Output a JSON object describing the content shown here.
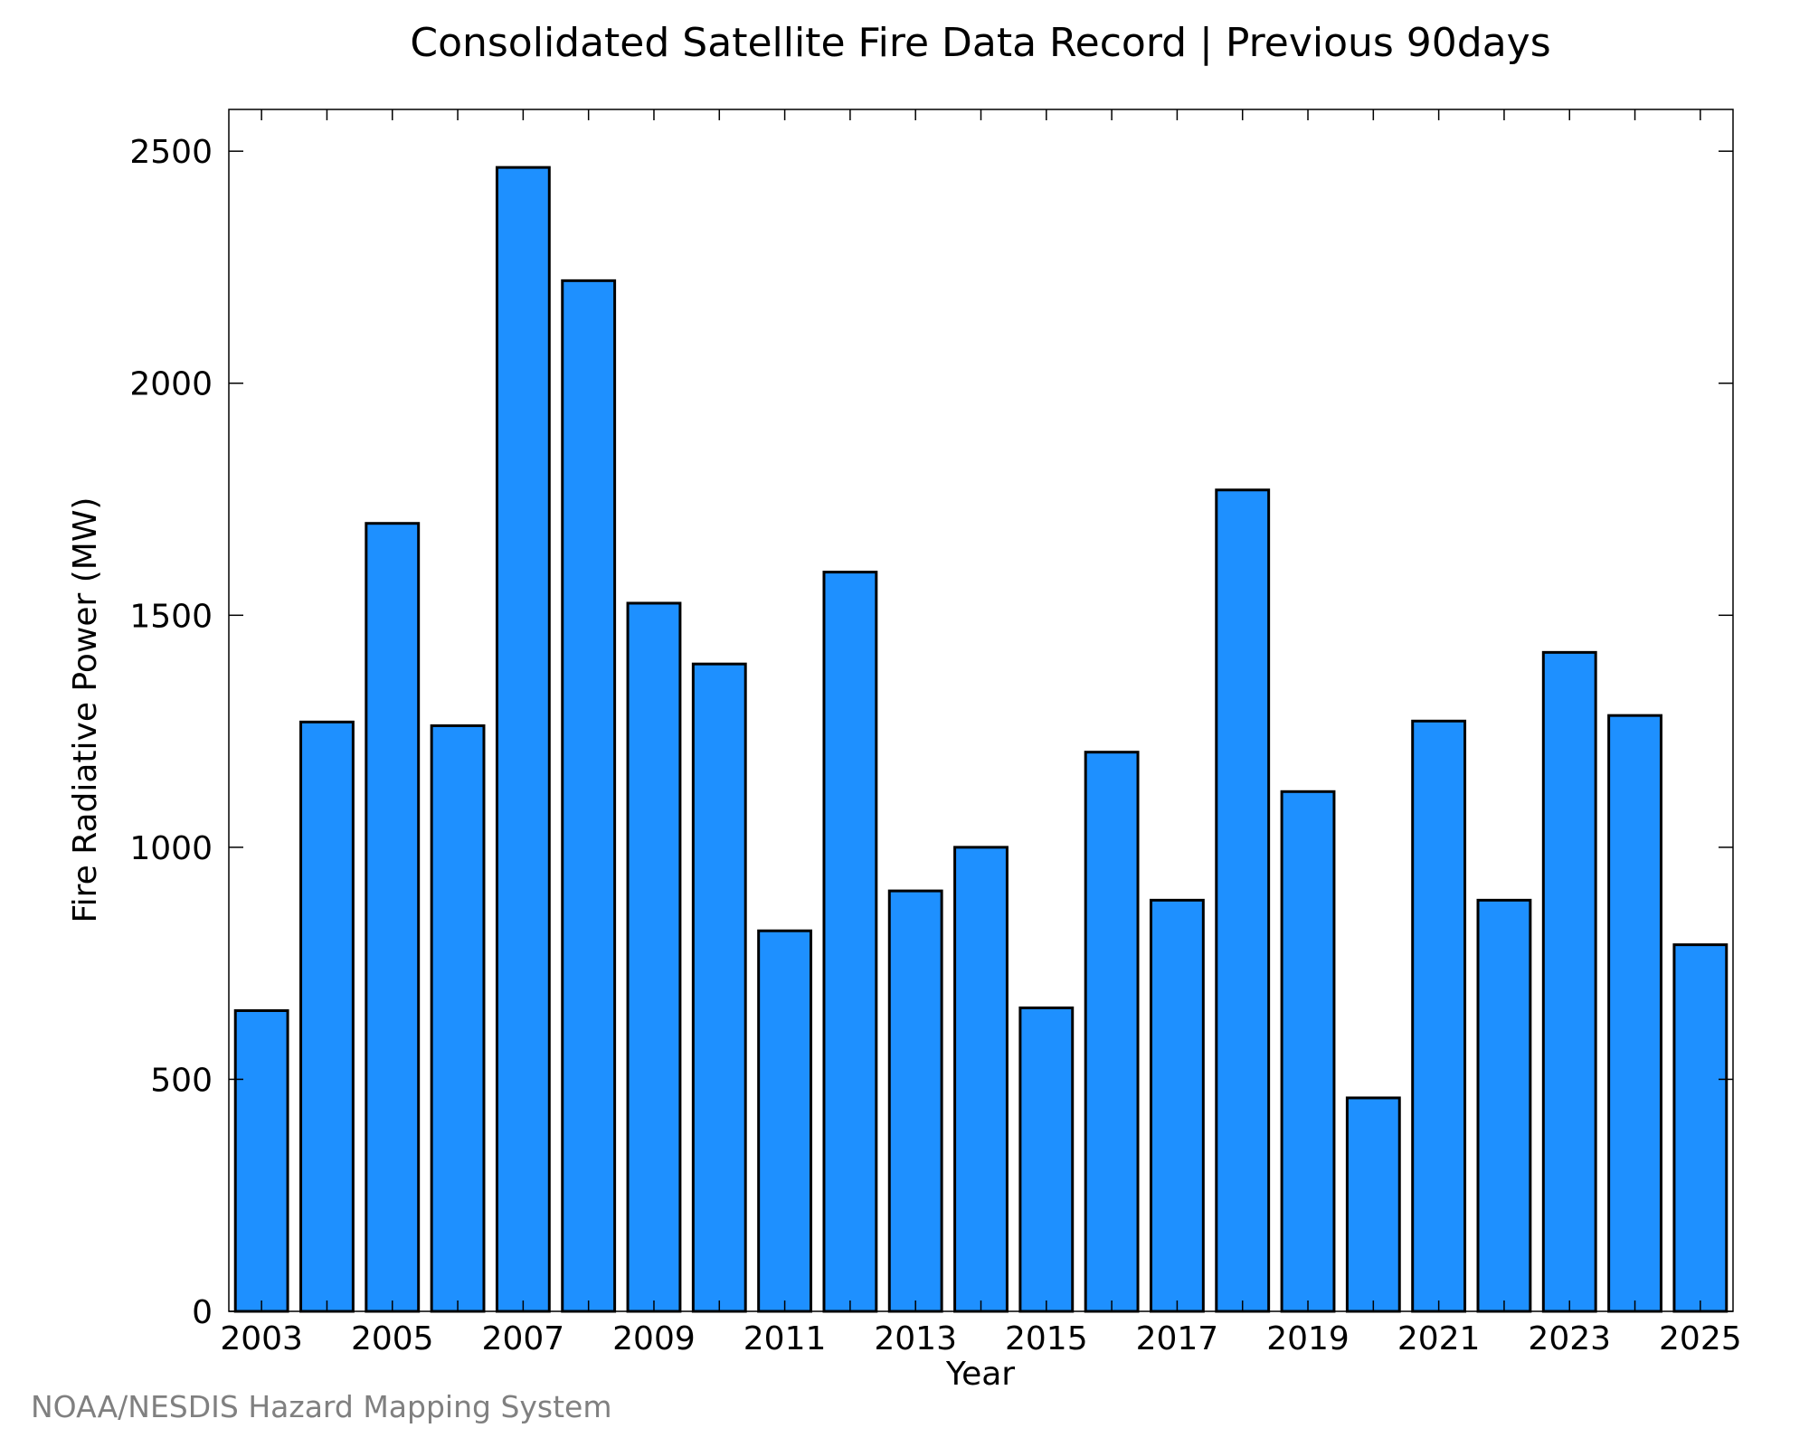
{
  "chart_data": {
    "type": "bar",
    "title": "Consolidated Satellite Fire Data Record | Previous 90days",
    "xlabel": "Year",
    "ylabel": "Fire Radiative Power (MW)",
    "categories": [
      2003,
      2004,
      2005,
      2006,
      2007,
      2008,
      2009,
      2010,
      2011,
      2012,
      2013,
      2014,
      2015,
      2016,
      2017,
      2018,
      2019,
      2020,
      2021,
      2022,
      2023,
      2024,
      2025
    ],
    "values": [
      648,
      1270,
      1698,
      1262,
      2465,
      2221,
      1526,
      1395,
      820,
      1593,
      906,
      1000,
      654,
      1205,
      886,
      1770,
      1120,
      460,
      1272,
      886,
      1420,
      1284,
      790
    ],
    "x_tick_labels": [
      "2003",
      "2005",
      "2007",
      "2009",
      "2011",
      "2013",
      "2015",
      "2017",
      "2019",
      "2021",
      "2023",
      "2025"
    ],
    "y_tick_labels": [
      "0",
      "500",
      "1000",
      "1500",
      "2000",
      "2500"
    ],
    "y_ticks": [
      0,
      500,
      1000,
      1500,
      2000,
      2500
    ],
    "ylim": [
      0,
      2590
    ],
    "xlim": [
      2002.5,
      2025.5
    ],
    "grid": false,
    "bar_color": "#1e90ff",
    "bar_edge_color": "#000000"
  },
  "footer": "NOAA/NESDIS Hazard Mapping System"
}
